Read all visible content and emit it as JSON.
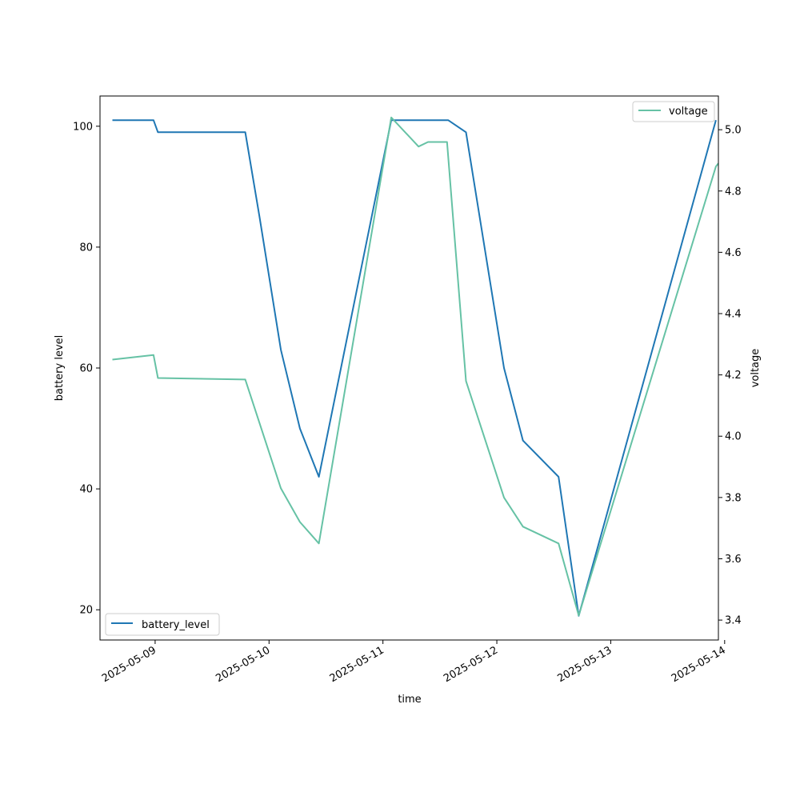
{
  "chart_data": {
    "type": "line",
    "xlabel": "time",
    "ylabel_left": "battery level",
    "ylabel_right": "voltage",
    "x_range": [
      "2025-05-08T12:23",
      "2025-05-13T22:41"
    ],
    "x_ticks": [
      "2025-05-09",
      "2025-05-10",
      "2025-05-11",
      "2025-05-12",
      "2025-05-13",
      "2025-05-14"
    ],
    "ylim_left": [
      15,
      105
    ],
    "yticks_left": [
      20,
      40,
      60,
      80,
      100
    ],
    "ylim_right": [
      3.335,
      5.11
    ],
    "yticks_right": [
      "3.4",
      "3.6",
      "3.8",
      "4.0",
      "4.2",
      "4.4",
      "4.6",
      "4.8",
      "5.0"
    ],
    "grid": false,
    "series": [
      {
        "name": "battery_level",
        "axis": "left",
        "color": "#1f77b4",
        "legend_position": "lower-left",
        "points": [
          [
            "2025-05-08T15:00",
            101
          ],
          [
            "2025-05-08T23:40",
            101
          ],
          [
            "2025-05-09T00:35",
            99
          ],
          [
            "2025-05-09T19:00",
            99
          ],
          [
            "2025-05-09T22:00",
            85
          ],
          [
            "2025-05-10T02:30",
            63
          ],
          [
            "2025-05-10T06:30",
            50
          ],
          [
            "2025-05-10T10:30",
            42
          ],
          [
            "2025-05-11T01:45",
            101
          ],
          [
            "2025-05-11T13:45",
            101
          ],
          [
            "2025-05-11T17:30",
            99
          ],
          [
            "2025-05-12T01:30",
            60
          ],
          [
            "2025-05-12T05:30",
            48
          ],
          [
            "2025-05-12T13:00",
            42
          ],
          [
            "2025-05-12T17:15",
            19
          ],
          [
            "2025-05-13T22:10",
            101
          ]
        ]
      },
      {
        "name": "voltage",
        "axis": "right",
        "color": "#66c2a5",
        "legend_position": "upper-right",
        "points": [
          [
            "2025-05-08T15:00",
            4.25
          ],
          [
            "2025-05-08T23:40",
            4.265
          ],
          [
            "2025-05-09T00:35",
            4.19
          ],
          [
            "2025-05-09T19:00",
            4.185
          ],
          [
            "2025-05-10T02:30",
            3.83
          ],
          [
            "2025-05-10T06:30",
            3.72
          ],
          [
            "2025-05-10T10:30",
            3.65
          ],
          [
            "2025-05-11T01:45",
            5.04
          ],
          [
            "2025-05-11T07:30",
            4.945
          ],
          [
            "2025-05-11T09:30",
            4.96
          ],
          [
            "2025-05-11T13:30",
            4.96
          ],
          [
            "2025-05-11T17:30",
            4.18
          ],
          [
            "2025-05-12T01:30",
            3.8
          ],
          [
            "2025-05-12T05:30",
            3.705
          ],
          [
            "2025-05-12T13:00",
            3.65
          ],
          [
            "2025-05-12T17:15",
            3.415
          ],
          [
            "2025-05-13T22:10",
            4.88
          ],
          [
            "2025-05-13T22:40",
            4.89
          ]
        ]
      }
    ]
  }
}
